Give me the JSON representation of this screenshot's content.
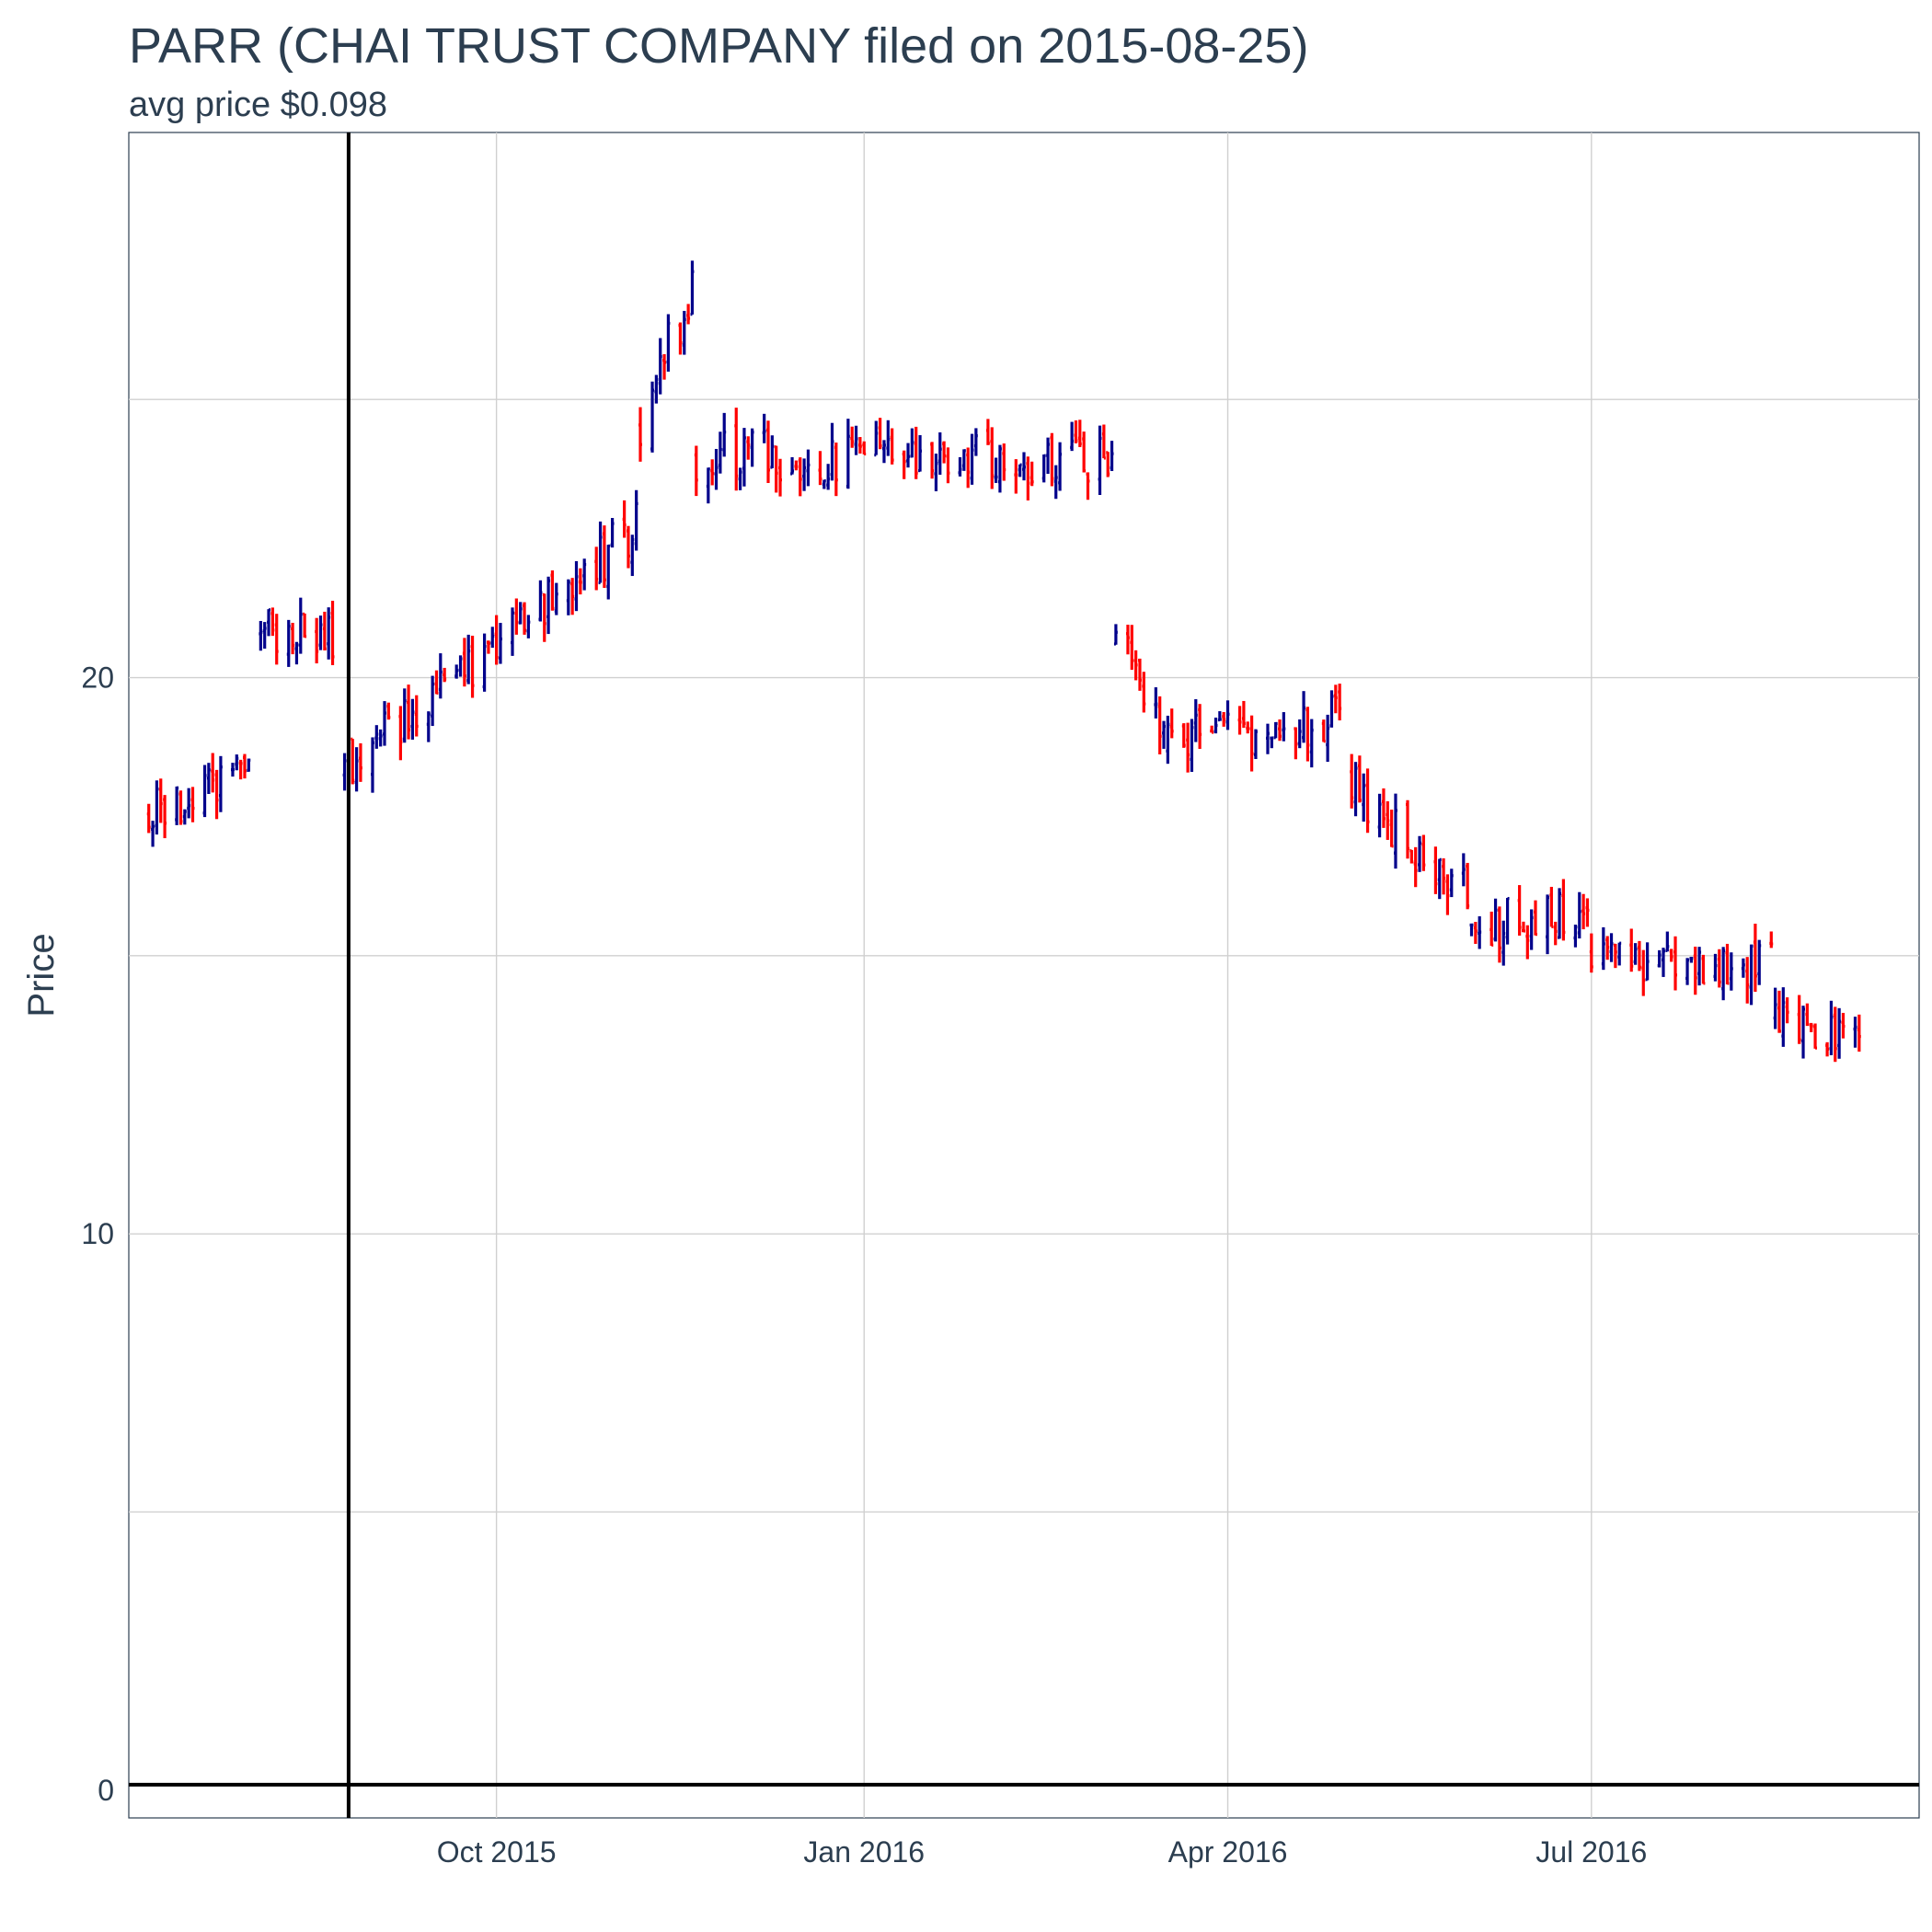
{
  "chart_data": {
    "type": "ohlc",
    "title": "PARR (CHAI TRUST COMPANY filed on 2015-08-25)",
    "subtitle": "avg price $0.098",
    "xlabel": "",
    "ylabel": "Price",
    "ylim": [
      -0.5,
      29.8
    ],
    "xlim": [
      "2015-07-01",
      "2016-09-21"
    ],
    "grid": true,
    "y_ticks": [
      0,
      10,
      20
    ],
    "x_ticks": [
      {
        "date": "2015-10-01",
        "label": "Oct 2015"
      },
      {
        "date": "2016-01-01",
        "label": "Jan 2016"
      },
      {
        "date": "2016-04-01",
        "label": "Apr 2016"
      },
      {
        "date": "2016-07-01",
        "label": "Jul 2016"
      }
    ],
    "filing_date": "2015-08-25",
    "colors": {
      "up": "#00008b",
      "down": "#ff0000",
      "reference": "#000000"
    },
    "segments": [
      {
        "start": "2015-07-06",
        "end": "2015-07-31",
        "from": 17.6,
        "to": 18.3
      },
      {
        "start": "2015-08-03",
        "end": "2015-08-21",
        "from": 20.9,
        "to": 20.8
      },
      {
        "start": "2015-08-24",
        "end": "2015-11-05",
        "from": 18.3,
        "to": 22.7
      },
      {
        "start": "2015-11-06",
        "end": "2015-11-19",
        "from": 24.5,
        "to": 27.2
      },
      {
        "start": "2015-11-20",
        "end": "2016-03-03",
        "from": 24.0,
        "to": 23.9
      },
      {
        "start": "2016-03-04",
        "end": "2016-03-16",
        "from": 20.6,
        "to": 18.7
      },
      {
        "start": "2016-03-17",
        "end": "2016-04-29",
        "from": 18.8,
        "to": 19.3
      },
      {
        "start": "2016-05-02",
        "end": "2016-05-31",
        "from": 18.2,
        "to": 16.0
      },
      {
        "start": "2016-06-01",
        "end": "2016-06-30",
        "from": 15.5,
        "to": 15.8
      },
      {
        "start": "2016-07-01",
        "end": "2016-08-15",
        "from": 15.0,
        "to": 14.9
      },
      {
        "start": "2016-08-16",
        "end": "2016-09-06",
        "from": 14.0,
        "to": 13.4
      }
    ]
  }
}
